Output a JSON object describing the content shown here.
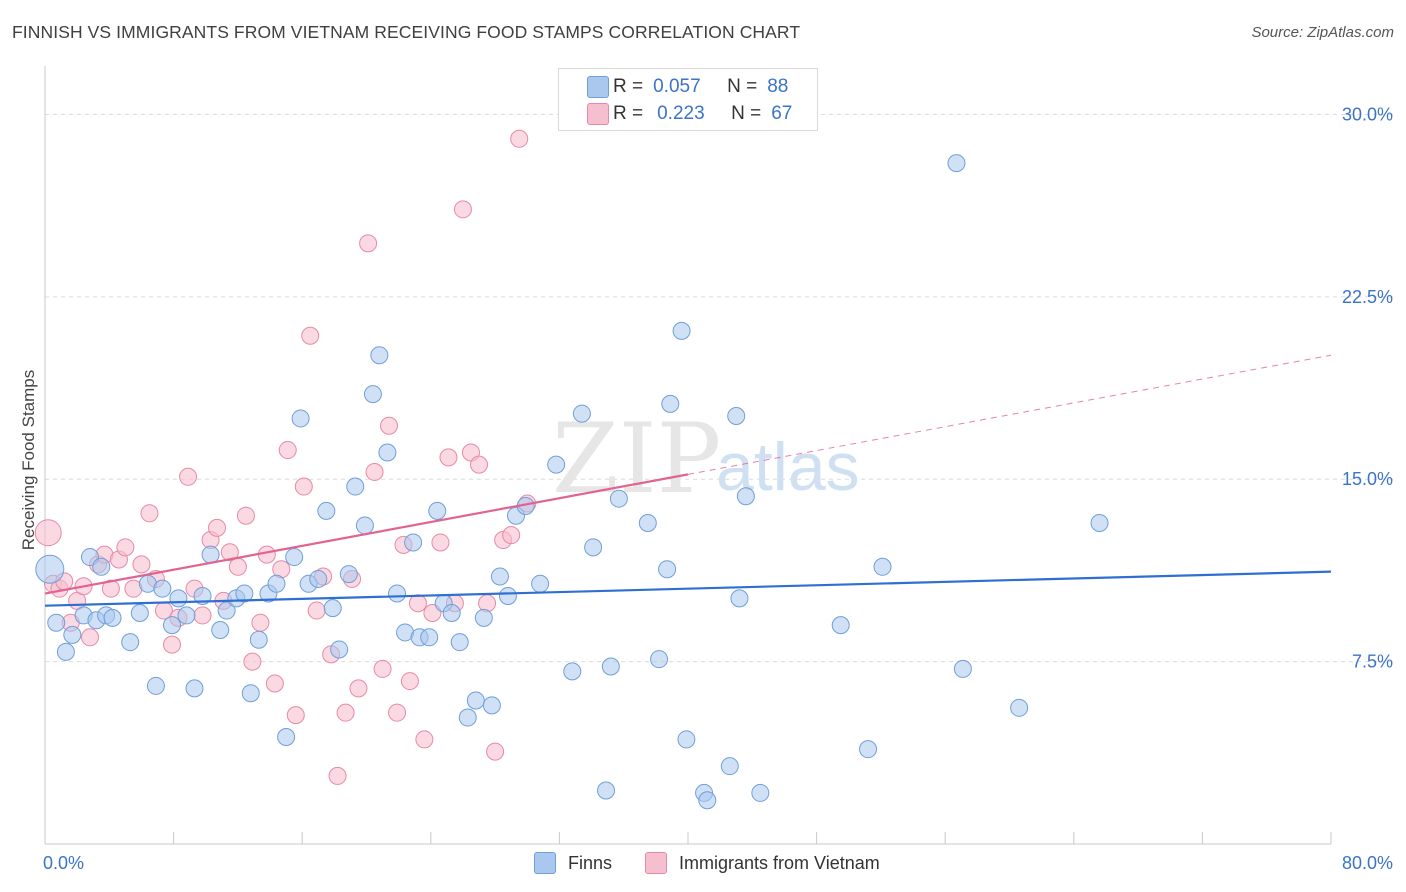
{
  "title": "FINNISH VS IMMIGRANTS FROM VIETNAM RECEIVING FOOD STAMPS CORRELATION CHART",
  "source": "Source: ZipAtlas.com",
  "legend": {
    "rows": [
      {
        "r_label": "R =",
        "r_value": "0.057",
        "n_label": "N =",
        "n_value": "88"
      },
      {
        "r_label": "R =",
        "r_value": "0.223",
        "n_label": "N =",
        "n_value": "67"
      }
    ]
  },
  "bottom_legend": [
    "Finns",
    "Immigrants from Vietnam"
  ],
  "watermark": {
    "zip": "ZIP",
    "atlas": "atlas"
  },
  "colors": {
    "finns_fill": "#aac8ee",
    "finns_stroke": "#6f9fd8",
    "finns_line": "#2e6fd1",
    "vietnam_fill": "#f6bfd0",
    "vietnam_stroke": "#e68aa7",
    "vietnam_line": "#e26391",
    "tick_text": "#3b73c8",
    "grid": "#dcdcdc"
  },
  "chart_data": {
    "type": "scatter",
    "title": "FINNISH VS IMMIGRANTS FROM VIETNAM RECEIVING FOOD STAMPS CORRELATION CHART",
    "xlabel": "",
    "ylabel": "Receiving Food Stamps",
    "xlim": [
      0,
      80
    ],
    "ylim": [
      0,
      31.5
    ],
    "x_tick_labels": [
      "0.0%",
      "80.0%"
    ],
    "y_ticks": [
      7.5,
      15.0,
      22.5,
      30.0
    ],
    "y_tick_labels": [
      "7.5%",
      "15.0%",
      "22.5%",
      "30.0%"
    ],
    "grid": "horizontal dashed",
    "legend_position": "top-center",
    "series": [
      {
        "name": "Finns",
        "R": 0.057,
        "N": 88,
        "trend": {
          "x": [
            0,
            80
          ],
          "y": [
            9.8,
            11.2
          ],
          "style": "solid"
        },
        "points": [
          [
            0.3,
            11.3
          ],
          [
            0.7,
            9.1
          ],
          [
            1.3,
            7.9
          ],
          [
            1.7,
            8.6
          ],
          [
            2.4,
            9.4
          ],
          [
            2.8,
            11.8
          ],
          [
            3.2,
            9.2
          ],
          [
            3.5,
            11.4
          ],
          [
            3.8,
            9.4
          ],
          [
            4.2,
            9.3
          ],
          [
            5.3,
            8.3
          ],
          [
            5.9,
            9.5
          ],
          [
            6.4,
            10.7
          ],
          [
            6.9,
            6.5
          ],
          [
            7.3,
            10.5
          ],
          [
            7.9,
            9.0
          ],
          [
            8.3,
            10.1
          ],
          [
            8.8,
            9.4
          ],
          [
            9.3,
            6.4
          ],
          [
            9.8,
            10.2
          ],
          [
            10.3,
            11.9
          ],
          [
            10.9,
            8.8
          ],
          [
            11.3,
            9.6
          ],
          [
            11.9,
            10.1
          ],
          [
            12.4,
            10.3
          ],
          [
            12.8,
            6.2
          ],
          [
            13.3,
            8.4
          ],
          [
            13.9,
            10.3
          ],
          [
            14.4,
            10.7
          ],
          [
            15.0,
            4.4
          ],
          [
            15.5,
            11.8
          ],
          [
            15.9,
            17.5
          ],
          [
            16.4,
            10.7
          ],
          [
            17.0,
            10.9
          ],
          [
            17.5,
            13.7
          ],
          [
            17.9,
            9.7
          ],
          [
            18.3,
            8.0
          ],
          [
            18.9,
            11.1
          ],
          [
            19.3,
            14.7
          ],
          [
            19.9,
            13.1
          ],
          [
            20.4,
            18.5
          ],
          [
            20.8,
            20.1
          ],
          [
            21.3,
            16.1
          ],
          [
            21.9,
            10.3
          ],
          [
            22.4,
            8.7
          ],
          [
            22.9,
            12.4
          ],
          [
            23.3,
            8.5
          ],
          [
            23.9,
            8.5
          ],
          [
            24.4,
            13.7
          ],
          [
            24.8,
            9.9
          ],
          [
            25.3,
            9.5
          ],
          [
            25.8,
            8.3
          ],
          [
            26.3,
            5.2
          ],
          [
            26.8,
            5.9
          ],
          [
            27.3,
            9.3
          ],
          [
            27.8,
            5.7
          ],
          [
            28.3,
            11.0
          ],
          [
            28.8,
            10.2
          ],
          [
            29.3,
            13.5
          ],
          [
            29.9,
            13.9
          ],
          [
            30.8,
            10.7
          ],
          [
            31.8,
            15.6
          ],
          [
            32.8,
            7.1
          ],
          [
            33.4,
            17.7
          ],
          [
            34.1,
            12.2
          ],
          [
            34.9,
            2.2
          ],
          [
            35.2,
            7.3
          ],
          [
            35.7,
            14.2
          ],
          [
            37.5,
            13.2
          ],
          [
            38.2,
            7.6
          ],
          [
            38.7,
            11.3
          ],
          [
            38.9,
            18.1
          ],
          [
            39.6,
            21.1
          ],
          [
            39.9,
            4.3
          ],
          [
            41.0,
            2.1
          ],
          [
            41.2,
            1.8
          ],
          [
            42.6,
            3.2
          ],
          [
            43.0,
            17.6
          ],
          [
            43.2,
            10.1
          ],
          [
            43.6,
            14.3
          ],
          [
            44.5,
            2.1
          ],
          [
            49.5,
            9.0
          ],
          [
            51.2,
            3.9
          ],
          [
            52.1,
            11.4
          ],
          [
            56.7,
            28.0
          ],
          [
            57.1,
            7.2
          ],
          [
            60.6,
            5.6
          ],
          [
            65.6,
            13.2
          ]
        ]
      },
      {
        "name": "Immigrants from Vietnam",
        "R": 0.223,
        "N": 67,
        "trend": {
          "x": [
            0,
            40
          ],
          "y": [
            10.3,
            15.2
          ],
          "style": "solid",
          "extended_x": [
            40,
            80
          ],
          "extended_y": [
            15.2,
            20.1
          ],
          "extended_style": "dashed"
        },
        "points": [
          [
            0.2,
            12.8
          ],
          [
            0.5,
            10.7
          ],
          [
            0.9,
            10.5
          ],
          [
            1.2,
            10.8
          ],
          [
            1.6,
            9.1
          ],
          [
            2.0,
            10.0
          ],
          [
            2.4,
            10.6
          ],
          [
            2.8,
            8.5
          ],
          [
            3.3,
            11.5
          ],
          [
            3.7,
            11.9
          ],
          [
            4.1,
            10.5
          ],
          [
            4.6,
            11.7
          ],
          [
            5.0,
            12.2
          ],
          [
            5.5,
            10.5
          ],
          [
            6.0,
            11.5
          ],
          [
            6.5,
            13.6
          ],
          [
            6.9,
            10.9
          ],
          [
            7.4,
            9.6
          ],
          [
            7.9,
            8.2
          ],
          [
            8.3,
            9.3
          ],
          [
            8.9,
            15.1
          ],
          [
            9.3,
            10.5
          ],
          [
            9.8,
            9.4
          ],
          [
            10.3,
            12.5
          ],
          [
            10.7,
            13.0
          ],
          [
            11.1,
            10.0
          ],
          [
            11.5,
            12.0
          ],
          [
            12.0,
            11.4
          ],
          [
            12.5,
            13.5
          ],
          [
            12.9,
            7.5
          ],
          [
            13.4,
            9.1
          ],
          [
            13.8,
            11.9
          ],
          [
            14.3,
            6.6
          ],
          [
            14.7,
            11.3
          ],
          [
            15.1,
            16.2
          ],
          [
            15.6,
            5.3
          ],
          [
            16.1,
            14.7
          ],
          [
            16.5,
            20.9
          ],
          [
            16.9,
            9.6
          ],
          [
            17.3,
            11.0
          ],
          [
            17.8,
            7.8
          ],
          [
            18.2,
            2.8
          ],
          [
            18.7,
            5.4
          ],
          [
            19.1,
            10.9
          ],
          [
            19.5,
            6.4
          ],
          [
            20.1,
            24.7
          ],
          [
            20.5,
            15.3
          ],
          [
            21.0,
            7.2
          ],
          [
            21.4,
            17.2
          ],
          [
            21.9,
            5.4
          ],
          [
            22.3,
            12.3
          ],
          [
            22.7,
            6.7
          ],
          [
            23.2,
            9.9
          ],
          [
            23.6,
            4.3
          ],
          [
            24.1,
            9.5
          ],
          [
            24.6,
            12.4
          ],
          [
            25.1,
            15.9
          ],
          [
            25.5,
            9.9
          ],
          [
            26.0,
            26.1
          ],
          [
            26.5,
            16.1
          ],
          [
            27.0,
            15.6
          ],
          [
            27.5,
            9.9
          ],
          [
            28.0,
            3.8
          ],
          [
            28.5,
            12.5
          ],
          [
            29.0,
            12.7
          ],
          [
            29.5,
            29.0
          ],
          [
            30.0,
            14.0
          ]
        ]
      }
    ]
  }
}
